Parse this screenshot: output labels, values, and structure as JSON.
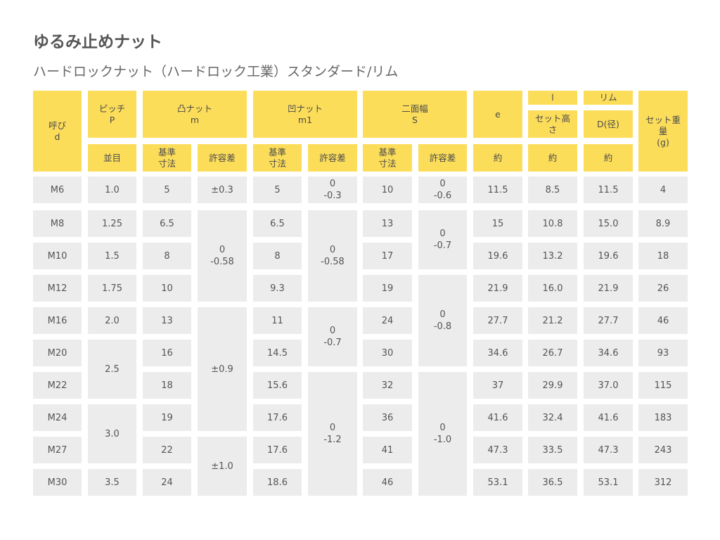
{
  "title": "ゆるみ止めナット",
  "subtitle": "ハードロックナット（ハードロック工業）スタンダード/リム",
  "headers": {
    "name": "呼び\nd",
    "pitch": "ピッチ\nP",
    "pitch_sub": "並目",
    "convex": "凸ナット\nm",
    "concave": "凹ナット\nm1",
    "flats": "二面幅\nS",
    "e": "e",
    "l": "l",
    "set_height": "セット高\nさ",
    "rim": "リム",
    "d_dia": "D(径)",
    "weight": "セット重\n量\n(g)",
    "base_dim": "基準\n寸法",
    "tolerance": "許容差",
    "approx": "約"
  },
  "rows": [
    {
      "d": "M6",
      "p": "1.0",
      "m": "5",
      "m1": "5",
      "s": "10",
      "e": "11.5",
      "l": "8.5",
      "D": "11.5",
      "w": "4"
    },
    {
      "d": "M8",
      "p": "1.25",
      "m": "6.5",
      "m1": "6.5",
      "s": "13",
      "e": "15",
      "l": "10.8",
      "D": "15.0",
      "w": "8.9"
    },
    {
      "d": "M10",
      "p": "1.5",
      "m": "8",
      "m1": "8",
      "s": "17",
      "e": "19.6",
      "l": "13.2",
      "D": "19.6",
      "w": "18"
    },
    {
      "d": "M12",
      "p": "1.75",
      "m": "10",
      "m1": "9.3",
      "s": "19",
      "e": "21.9",
      "l": "16.0",
      "D": "21.9",
      "w": "26"
    },
    {
      "d": "M16",
      "p": "2.0",
      "m": "13",
      "m1": "11",
      "s": "24",
      "e": "27.7",
      "l": "21.2",
      "D": "27.7",
      "w": "46"
    },
    {
      "d": "M20",
      "p": "",
      "m": "16",
      "m1": "14.5",
      "s": "30",
      "e": "34.6",
      "l": "26.7",
      "D": "34.6",
      "w": "93"
    },
    {
      "d": "M22",
      "p": "",
      "m": "18",
      "m1": "15.6",
      "s": "32",
      "e": "37",
      "l": "29.9",
      "D": "37.0",
      "w": "115"
    },
    {
      "d": "M24",
      "p": "",
      "m": "19",
      "m1": "17.6",
      "s": "36",
      "e": "41.6",
      "l": "32.4",
      "D": "41.6",
      "w": "183"
    },
    {
      "d": "M27",
      "p": "",
      "m": "22",
      "m1": "17.6",
      "s": "41",
      "e": "47.3",
      "l": "33.5",
      "D": "47.3",
      "w": "243"
    },
    {
      "d": "M30",
      "p": "3.5",
      "m": "24",
      "m1": "18.6",
      "s": "46",
      "e": "53.1",
      "l": "36.5",
      "D": "53.1",
      "w": "312"
    }
  ],
  "merged": {
    "pitch_m20_m22": "2.5",
    "pitch_m24_m27": "3.0",
    "m_tol_m6": "±0.3",
    "m_tol_m8_m12": "0\n-0.58",
    "m_tol_m16_m24": "±0.9",
    "m_tol_m27_m30": "±1.0",
    "m1_tol_m6": "0\n-0.3",
    "m1_tol_m8_m12": "0\n-0.58",
    "m1_tol_m16_m20": "0\n-0.7",
    "m1_tol_m22_m30": "0\n-1.2",
    "s_tol_m6": "0\n-0.6",
    "s_tol_m8_m10": "0\n-0.7",
    "s_tol_m12_m20": "0\n-0.8",
    "s_tol_m22_m30": "0\n-1.0"
  },
  "colors": {
    "header_bg": "#fcdd5a",
    "body_bg": "#ececec"
  }
}
